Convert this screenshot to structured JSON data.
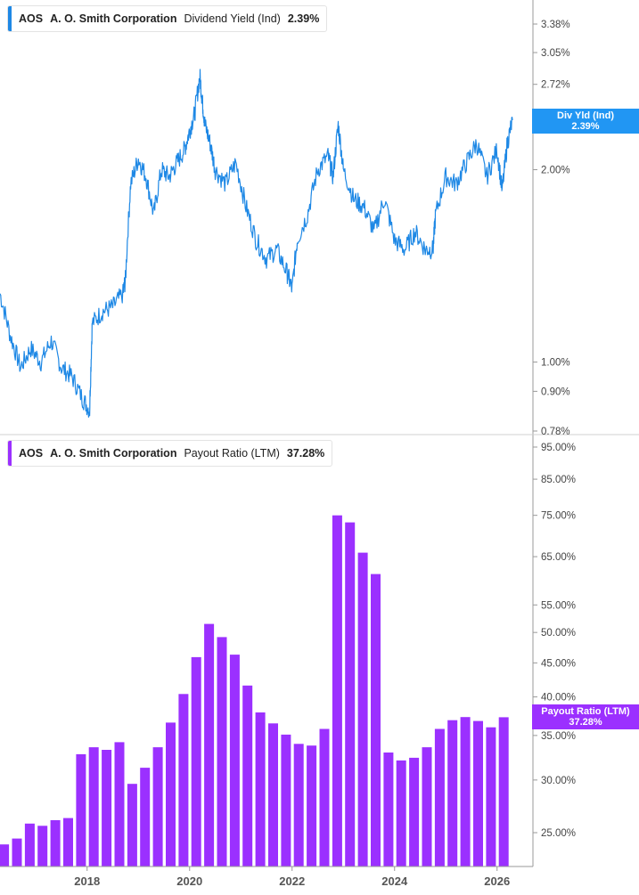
{
  "top_legend": {
    "ticker": "AOS",
    "company": "A. O. Smith Corporation",
    "metric": "Dividend Yield (Ind)",
    "value": "2.39%"
  },
  "bottom_legend": {
    "ticker": "AOS",
    "company": "A. O. Smith Corporation",
    "metric": "Payout Ratio (LTM)",
    "value": "37.28%"
  },
  "top_tag": {
    "label": "Div Yld (Ind)",
    "value": "2.39%"
  },
  "bottom_tag": {
    "label": "Payout Ratio (LTM)",
    "value": "37.28%"
  },
  "colors": {
    "yield": "#1e88e5",
    "payout": "#9b30ff",
    "tag_yield": "#2196f3",
    "tag_payout": "#9b30ff"
  },
  "chart_data": [
    {
      "type": "line",
      "scale": "log",
      "ylim": [
        0.77,
        3.9
      ],
      "y_ticks": [
        "3.38%",
        "3.05%",
        "2.72%",
        "2.00%",
        "1.00%",
        "0.90%",
        "0.78%"
      ],
      "y_tick_values": [
        3.38,
        3.05,
        2.72,
        2.0,
        1.0,
        0.9,
        0.78
      ],
      "xlim": [
        2016.3,
        2026.7
      ],
      "series": [
        {
          "name": "Dividend Yield (Ind)",
          "x": [
            2016.3,
            2016.5,
            2016.7,
            2016.9,
            2017.1,
            2017.3,
            2017.5,
            2017.7,
            2017.9,
            2018.05,
            2018.1,
            2018.3,
            2018.5,
            2018.7,
            2018.75,
            2018.85,
            2019.0,
            2019.15,
            2019.3,
            2019.45,
            2019.6,
            2019.75,
            2019.9,
            2020.0,
            2020.1,
            2020.2,
            2020.25,
            2020.3,
            2020.4,
            2020.5,
            2020.7,
            2020.9,
            2021.1,
            2021.3,
            2021.5,
            2021.7,
            2021.9,
            2022.0,
            2022.1,
            2022.3,
            2022.5,
            2022.7,
            2022.8,
            2022.9,
            2023.0,
            2023.2,
            2023.4,
            2023.6,
            2023.8,
            2024.0,
            2024.2,
            2024.4,
            2024.6,
            2024.75,
            2024.8,
            2025.0,
            2025.2,
            2025.4,
            2025.6,
            2025.8,
            2026.0,
            2026.1,
            2026.2,
            2026.3
          ],
          "values": [
            1.28,
            1.1,
            0.98,
            1.05,
            1.0,
            1.08,
            0.98,
            0.95,
            0.88,
            0.84,
            1.15,
            1.2,
            1.22,
            1.28,
            1.35,
            1.9,
            2.08,
            1.95,
            1.7,
            2.0,
            1.95,
            2.05,
            2.15,
            2.3,
            2.45,
            2.8,
            2.55,
            2.35,
            2.2,
            2.0,
            1.9,
            2.05,
            1.75,
            1.55,
            1.45,
            1.5,
            1.38,
            1.3,
            1.55,
            1.7,
            2.0,
            2.1,
            1.95,
            2.35,
            2.0,
            1.8,
            1.75,
            1.6,
            1.8,
            1.55,
            1.5,
            1.6,
            1.5,
            1.5,
            1.7,
            1.95,
            1.9,
            2.05,
            2.2,
            1.95,
            2.15,
            1.85,
            2.2,
            2.39
          ]
        }
      ]
    },
    {
      "type": "bar",
      "scale": "log",
      "ylim": [
        22.5,
        95.0
      ],
      "y_ticks": [
        "95.00%",
        "85.00%",
        "75.00%",
        "65.00%",
        "55.00%",
        "50.00%",
        "45.00%",
        "40.00%",
        "35.00%",
        "30.00%",
        "25.00%"
      ],
      "y_tick_values": [
        95,
        85,
        75,
        65,
        55,
        50,
        45,
        40,
        35,
        30,
        25
      ],
      "x_ticks": [
        "2018",
        "2020",
        "2022",
        "2024",
        "2026"
      ],
      "x_tick_values": [
        2018,
        2020,
        2022,
        2024,
        2026
      ],
      "xlim": [
        2016.3,
        2026.7
      ],
      "series": [
        {
          "name": "Payout Ratio (LTM)",
          "x": [
            2016.38,
            2016.63,
            2016.88,
            2017.13,
            2017.38,
            2017.63,
            2017.88,
            2018.13,
            2018.38,
            2018.63,
            2018.88,
            2019.13,
            2019.38,
            2019.63,
            2019.88,
            2020.13,
            2020.38,
            2020.63,
            2020.88,
            2021.13,
            2021.38,
            2021.63,
            2021.88,
            2022.13,
            2022.38,
            2022.63,
            2022.88,
            2023.13,
            2023.38,
            2023.63,
            2023.88,
            2024.13,
            2024.38,
            2024.63,
            2024.88,
            2025.13,
            2025.38,
            2025.63,
            2025.88,
            2026.13
          ],
          "values": [
            24.0,
            24.5,
            25.8,
            25.6,
            26.1,
            26.3,
            32.8,
            33.6,
            33.3,
            34.2,
            29.6,
            31.3,
            33.6,
            36.6,
            40.4,
            45.9,
            51.5,
            49.2,
            46.3,
            41.6,
            37.9,
            36.5,
            35.1,
            34.0,
            33.8,
            35.8,
            75.0,
            73.2,
            65.9,
            61.2,
            33.0,
            32.1,
            32.4,
            33.6,
            35.8,
            36.9,
            37.3,
            36.8,
            36.0,
            37.28
          ]
        }
      ]
    }
  ]
}
